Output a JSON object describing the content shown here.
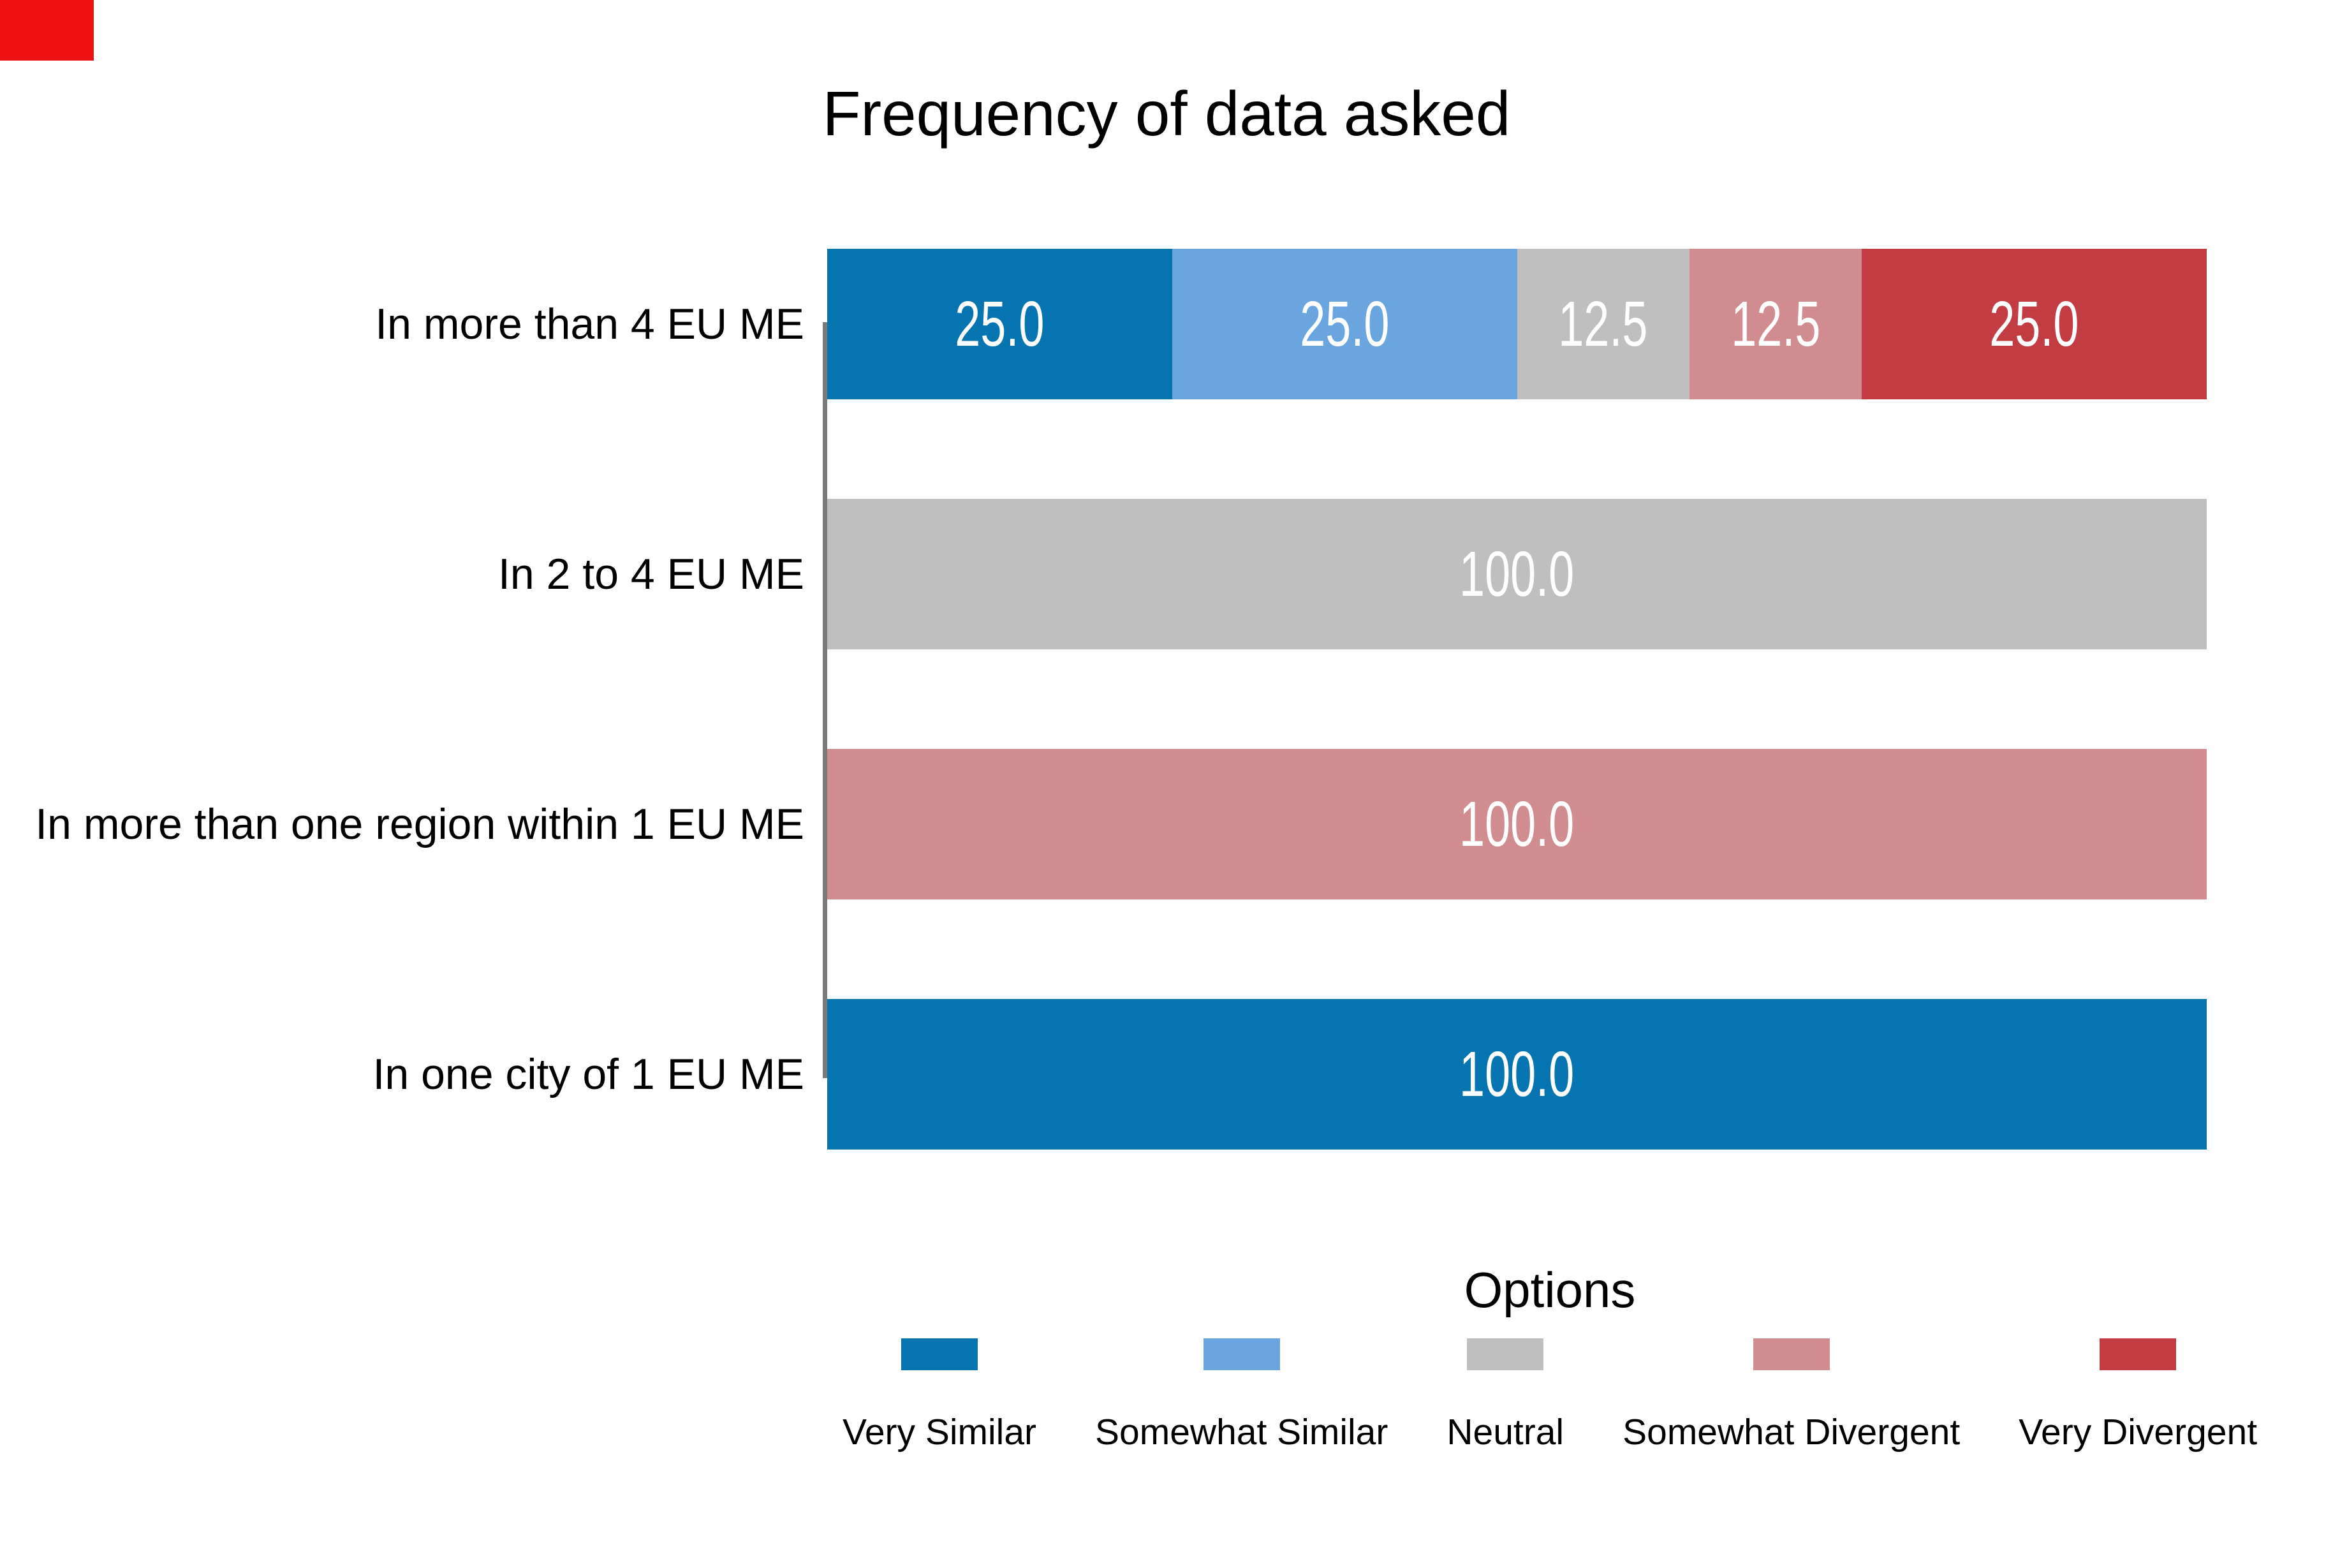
{
  "figure": {
    "background": "#ffffff",
    "marker_color": "#ee1111",
    "axis_line_color": "#7a7a7a",
    "text_color": "#000000",
    "value_label_color": "#ffffff"
  },
  "chart_data": {
    "type": "bar",
    "orientation": "horizontal",
    "stacked": true,
    "title": "Frequency of data asked",
    "xlim": [
      0,
      100
    ],
    "grid": false,
    "value_labels_shown": true,
    "value_label_format": "1 decimal place",
    "categories": [
      "In more than 4 EU ME",
      "In 2 to 4 EU ME",
      "In more than one region within 1 EU ME",
      "In one city of 1 EU ME"
    ],
    "series": [
      {
        "name": "Very Similar",
        "color": "#0574b0",
        "values": [
          25,
          0,
          0,
          100
        ]
      },
      {
        "name": "Somewhat Similar",
        "color": "#6ba5e0",
        "values": [
          25,
          0,
          0,
          0
        ]
      },
      {
        "name": "Neutral",
        "color": "#bfbfbf",
        "values": [
          12.5,
          100,
          0,
          0
        ]
      },
      {
        "name": "Somewhat Divergent",
        "color": "#d08c8e",
        "values": [
          12.5,
          0,
          100,
          0
        ]
      },
      {
        "name": "Very Divergent",
        "color": "#c23c42",
        "values": [
          25,
          0,
          0,
          0
        ]
      }
    ],
    "legend": {
      "title": "Options",
      "position": "bottom",
      "labels": [
        "Very Similar",
        "Somewhat Similar",
        "Neutral",
        "Somewhat Divergent",
        "Very Divergent"
      ]
    }
  }
}
